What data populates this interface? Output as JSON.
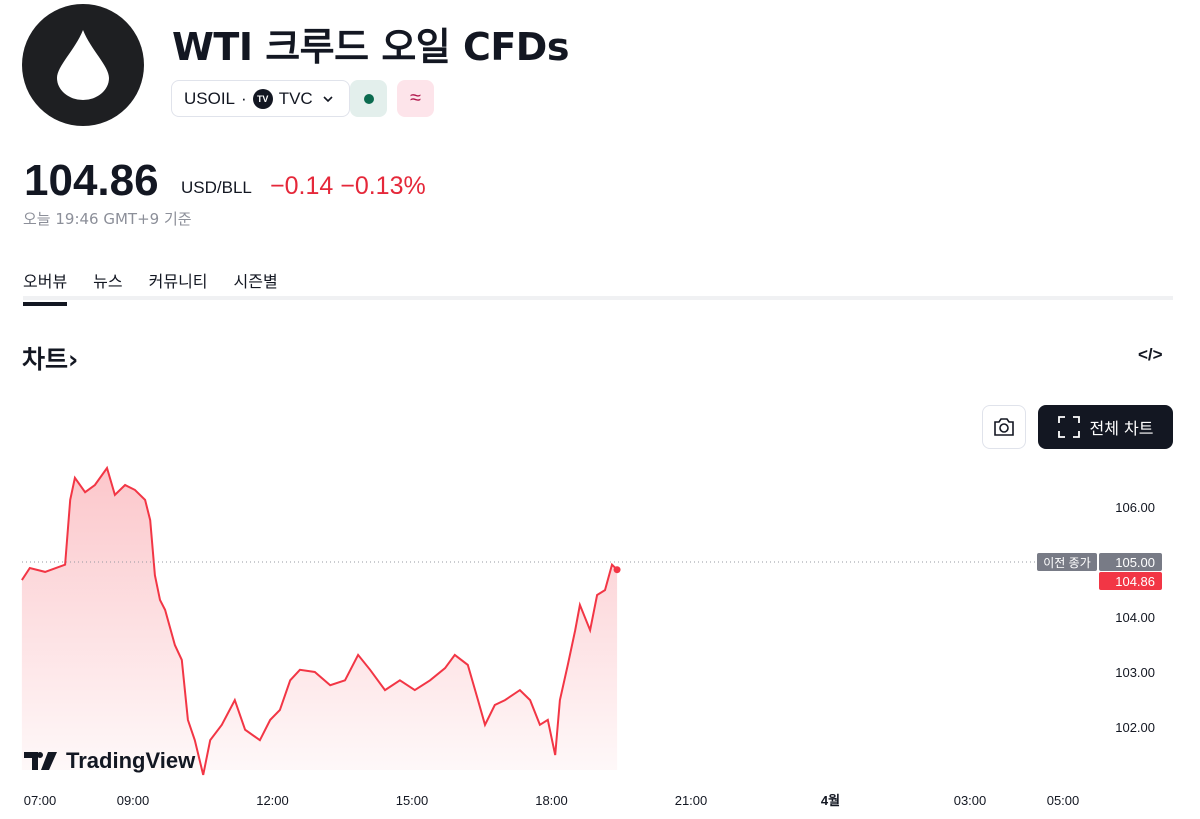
{
  "header": {
    "title": "WTI 크루드 오일 CFDs",
    "symbol": "USOIL",
    "exchange": "TVC",
    "exchange_badge": "TV",
    "market_status_icon": "dot-icon",
    "cfd_icon": "≈"
  },
  "quote": {
    "price": "104.86",
    "unit": "USD/BLL",
    "change": "−0.14",
    "change_pct": "−0.13%",
    "as_of": "오늘 19:46 GMT+9 기준"
  },
  "tabs": [
    {
      "label": "오버뷰",
      "active": true
    },
    {
      "label": "뉴스"
    },
    {
      "label": "커뮤니티"
    },
    {
      "label": "시즌별"
    }
  ],
  "chart_section": {
    "title": "차트",
    "arrow": "›",
    "embed_label": "</>",
    "full_chart_label": "전체 차트",
    "brand": "TradingView"
  },
  "colors": {
    "line": "#f23645",
    "accent": "#131722",
    "down": "#e5283a"
  },
  "chart_data": {
    "type": "area",
    "prev_close_label": "이전 종가",
    "prev_close": 105.0,
    "last": 104.86,
    "last_label": "104.86",
    "prev_close_text": "105.00",
    "y_ticks": [
      "106.00",
      "105.00",
      "104.00",
      "103.00",
      "102.00"
    ],
    "y_tick_values": [
      106,
      105,
      104,
      103,
      102
    ],
    "x_ticks": [
      {
        "label": "07:00",
        "h": 7
      },
      {
        "label": "09:00",
        "h": 9
      },
      {
        "label": "12:00",
        "h": 12
      },
      {
        "label": "15:00",
        "h": 15
      },
      {
        "label": "18:00",
        "h": 18
      },
      {
        "label": "21:00",
        "h": 21
      },
      {
        "label": "4월",
        "h": 24,
        "bold": true
      },
      {
        "label": "03:00",
        "h": 27
      },
      {
        "label": "05:00",
        "h": 29
      }
    ],
    "points": [
      [
        6.61,
        104.67
      ],
      [
        6.78,
        104.89
      ],
      [
        7.11,
        104.82
      ],
      [
        7.54,
        104.95
      ],
      [
        7.65,
        106.13
      ],
      [
        7.75,
        106.53
      ],
      [
        7.97,
        106.27
      ],
      [
        8.18,
        106.4
      ],
      [
        8.44,
        106.71
      ],
      [
        8.61,
        106.22
      ],
      [
        8.83,
        106.4
      ],
      [
        9.04,
        106.31
      ],
      [
        9.26,
        106.13
      ],
      [
        9.37,
        105.76
      ],
      [
        9.47,
        104.76
      ],
      [
        9.58,
        104.31
      ],
      [
        9.69,
        104.13
      ],
      [
        9.9,
        103.49
      ],
      [
        10.05,
        103.22
      ],
      [
        10.18,
        102.13
      ],
      [
        10.33,
        101.76
      ],
      [
        10.51,
        101.13
      ],
      [
        10.66,
        101.76
      ],
      [
        10.91,
        102.04
      ],
      [
        11.19,
        102.49
      ],
      [
        11.41,
        101.95
      ],
      [
        11.73,
        101.76
      ],
      [
        11.95,
        102.13
      ],
      [
        12.16,
        102.31
      ],
      [
        12.38,
        102.85
      ],
      [
        12.59,
        103.04
      ],
      [
        12.91,
        103.0
      ],
      [
        13.24,
        102.76
      ],
      [
        13.56,
        102.85
      ],
      [
        13.84,
        103.31
      ],
      [
        14.1,
        103.04
      ],
      [
        14.42,
        102.67
      ],
      [
        14.74,
        102.85
      ],
      [
        15.06,
        102.67
      ],
      [
        15.39,
        102.85
      ],
      [
        15.71,
        103.07
      ],
      [
        15.92,
        103.31
      ],
      [
        16.2,
        103.13
      ],
      [
        16.42,
        102.49
      ],
      [
        16.57,
        102.04
      ],
      [
        16.78,
        102.4
      ],
      [
        17.0,
        102.49
      ],
      [
        17.32,
        102.67
      ],
      [
        17.54,
        102.49
      ],
      [
        17.75,
        102.04
      ],
      [
        17.92,
        102.13
      ],
      [
        18.08,
        101.49
      ],
      [
        18.18,
        102.49
      ],
      [
        18.35,
        103.13
      ],
      [
        18.51,
        103.76
      ],
      [
        18.61,
        104.22
      ],
      [
        18.83,
        103.76
      ],
      [
        18.98,
        104.4
      ],
      [
        19.15,
        104.49
      ],
      [
        19.3,
        104.95
      ],
      [
        19.41,
        104.86
      ]
    ]
  }
}
